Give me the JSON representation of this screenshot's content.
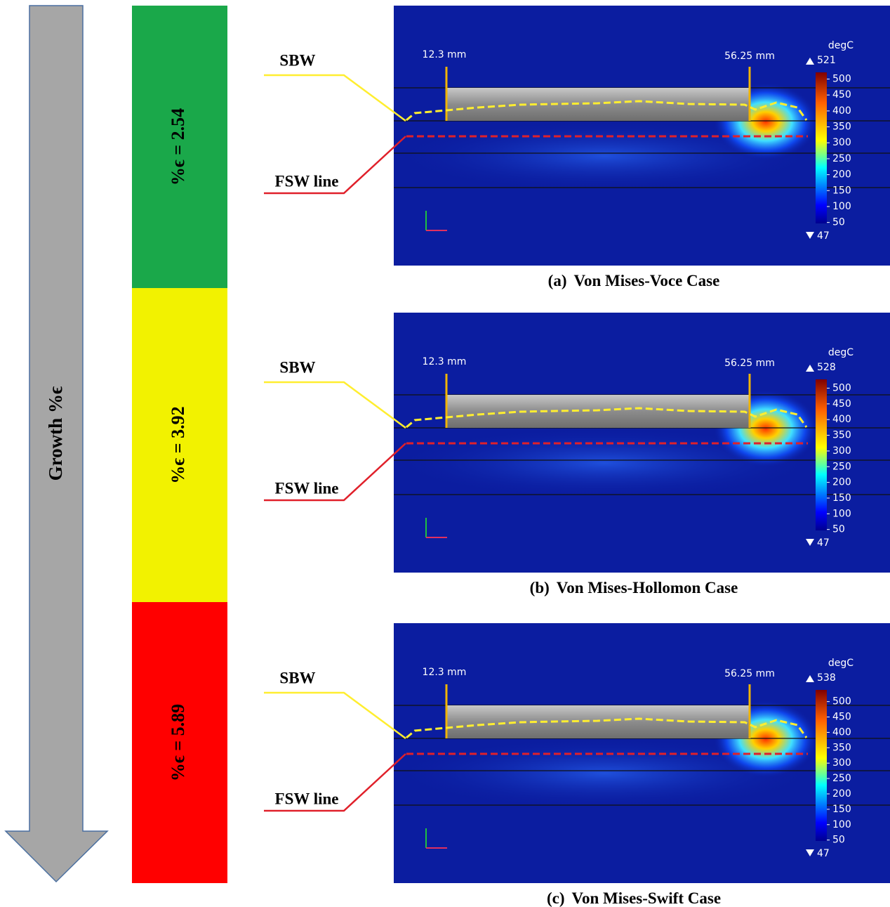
{
  "arrow_label": "Growth %ϵ",
  "levels": [
    {
      "label": "%ϵ = 2.54",
      "color": "#1aa84a"
    },
    {
      "label": "%ϵ = 3.92",
      "color": "#f2f200"
    },
    {
      "label": "%ϵ = 5.89",
      "color": "#ff0000"
    }
  ],
  "panels": [
    {
      "tag": "(a)",
      "title": "Von Mises-Voce Case",
      "sbw_label": "SBW",
      "fsw_label": "FSW line",
      "start_label": "12.3 mm",
      "end_label": "56.25 mm",
      "unit": "degC",
      "max": 521,
      "min": 47,
      "ticks": [
        50,
        100,
        150,
        200,
        250,
        300,
        350,
        400,
        450,
        500
      ]
    },
    {
      "tag": "(b)",
      "title": "Von Mises-Hollomon Case",
      "sbw_label": "SBW",
      "fsw_label": "FSW line",
      "start_label": "12.3 mm",
      "end_label": "56.25 mm",
      "unit": "degC",
      "max": 528,
      "min": 47,
      "ticks": [
        50,
        100,
        150,
        200,
        250,
        300,
        350,
        400,
        450,
        500
      ]
    },
    {
      "tag": "(c)",
      "title": "Von Mises-Swift Case",
      "sbw_label": "SBW",
      "fsw_label": "FSW line",
      "start_label": "12.3 mm",
      "end_label": "56.25 mm",
      "unit": "degC",
      "max": 538,
      "min": 47,
      "ticks": [
        50,
        100,
        150,
        200,
        250,
        300,
        350,
        400,
        450,
        500
      ]
    }
  ]
}
